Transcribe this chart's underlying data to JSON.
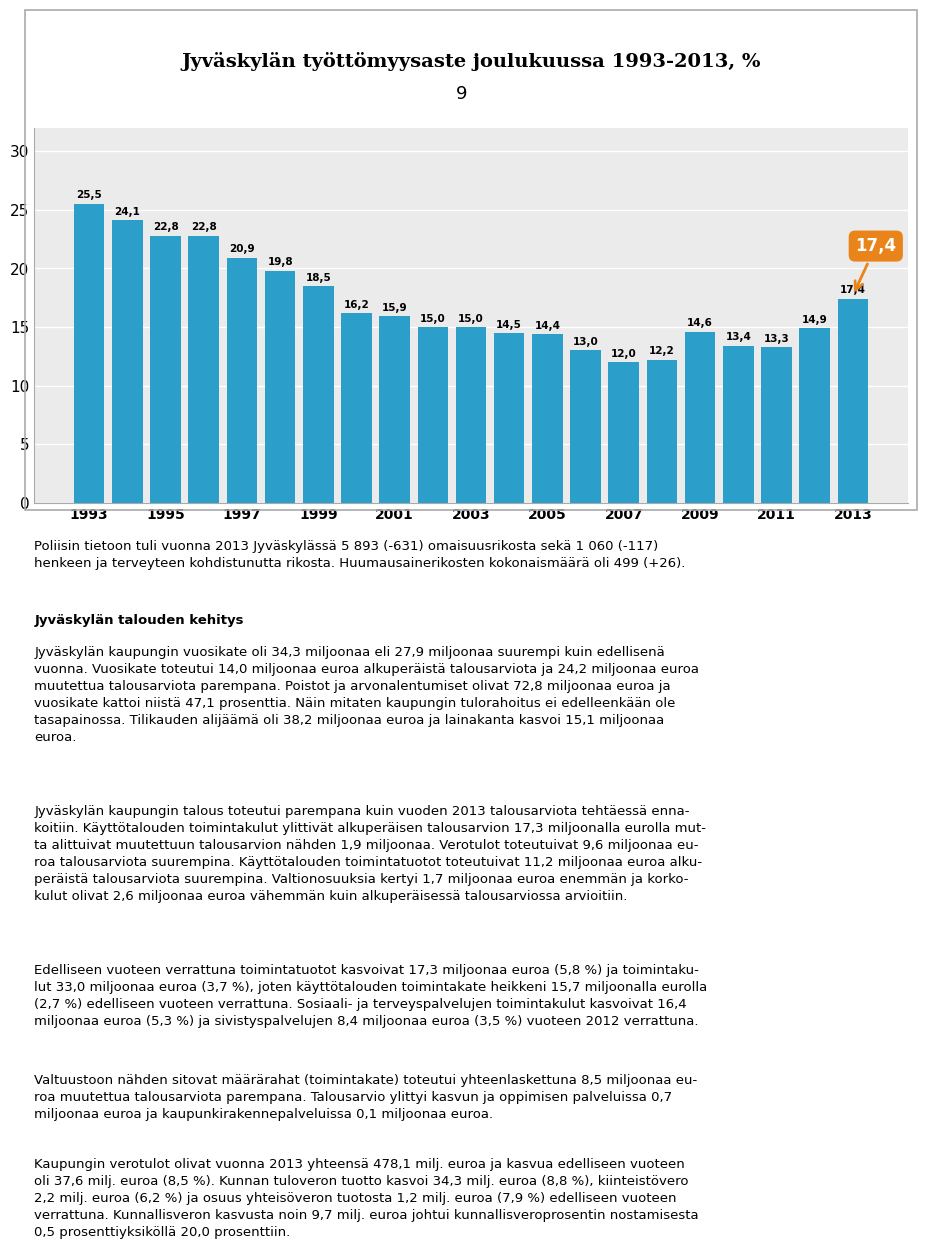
{
  "title": "Jyväskylän työttömyysaste joulukuussa 1993-2013, %",
  "page_number": "9",
  "years": [
    1993,
    1994,
    1995,
    1996,
    1997,
    1998,
    1999,
    2000,
    2001,
    2002,
    2003,
    2004,
    2005,
    2006,
    2007,
    2008,
    2009,
    2010,
    2011,
    2012,
    2013
  ],
  "values": [
    25.5,
    24.1,
    22.8,
    22.8,
    20.9,
    19.8,
    18.5,
    16.2,
    15.9,
    15.0,
    15.0,
    14.5,
    14.4,
    13.0,
    12.0,
    12.2,
    14.6,
    13.4,
    13.3,
    14.9,
    17.4
  ],
  "bar_color": "#2B9EC9",
  "callout_color": "#E8841A",
  "callout_text_color": "#ffffff",
  "yticks": [
    0,
    5,
    10,
    15,
    20,
    25,
    30
  ],
  "xtick_years": [
    1993,
    1995,
    1997,
    1999,
    2001,
    2003,
    2005,
    2007,
    2009,
    2011,
    2013
  ],
  "ylim": [
    0,
    32
  ],
  "para0": "Poliisin tietoon tuli vuonna 2013 Jyväskylässä 5 893 (-631) omaisuusrikosta sekä 1 060 (-117)\nhenkeen ja terveyteen kohdistunutta rikosta. Huumausainerikosten kokonaismäärä oli 499 (+26).",
  "heading1": "Jyväskylän talouden kehitys",
  "para1": "Jyväskylän kaupungin vuosikate oli 34,3 miljoonaa eli 27,9 miljoonaa suurempi kuin edellisenä\nvuonna. Vuosikate toteutui 14,0 miljoonaa euroa alkuperäistä talousarviota ja 24,2 miljoonaa euroa\nmuutettua talousarviota parempana. Poistot ja arvonalentumiset olivat 72,8 miljoonaa euroa ja\nvuosikate kattoi niistä 47,1 prosenttia. Näin mitaten kaupungin tulorahoitus ei edelleenkään ole\ntasapainossa. Tilikauden alijäämä oli 38,2 miljoonaa euroa ja lainakanta kasvoi 15,1 miljoonaa\neuroa.",
  "para2": "Jyväskylän kaupungin talous toteutui parempana kuin vuoden 2013 talousarviota tehtäessä enna-\nkoitiin. Käyttötalouden toimintakulut ylittivät alkuperäisen talousarvion 17,3 miljoonalla eurolla mut-\nta alittuivat muutettuun talousarvion nähden 1,9 miljoonaa. Verotulot toteutuivat 9,6 miljoonaa eu-\nroa talousarviota suurempina. Käyttötalouden toimintatuotot toteutuivat 11,2 miljoonaa euroa alku-\nperäistä talousarviota suurempina. Valtionosuuksia kertyi 1,7 miljoonaa euroa enemmän ja korko-\nkulut olivat 2,6 miljoonaa euroa vähemmän kuin alkuperäisessä talousarviossa arvioitiin.",
  "para3": "Edelliseen vuoteen verrattuna toimintatuotot kasvoivat 17,3 miljoonaa euroa (5,8 %) ja toimintaku-\nlut 33,0 miljoonaa euroa (3,7 %), joten käyttötalouden toimintakate heikkeni 15,7 miljoonalla eurolla\n(2,7 %) edelliseen vuoteen verrattuna. Sosiaali- ja terveyspalvelujen toimintakulut kasvoivat 16,4\nmiljoonaa euroa (5,3 %) ja sivistyspalvelujen 8,4 miljoonaa euroa (3,5 %) vuoteen 2012 verrattuna.",
  "para4": "Valtuustoon nähden sitovat määrärahat (toimintakate) toteutui yhteenlaskettuna 8,5 miljoonaa eu-\nroa muutettua talousarviota parempana. Talousarvio ylittyi kasvun ja oppimisen palveluissa 0,7\nmiljoonaa euroa ja kaupunkirakennepalveluissa 0,1 miljoonaa euroa.",
  "para5": "Kaupungin verotulot olivat vuonna 2013 yhteensä 478,1 milj. euroa ja kasvua edelliseen vuoteen\noli 37,6 milj. euroa (8,5 %). Kunnan tuloveron tuotto kasvoi 34,3 milj. euroa (8,8 %), kiinteistövero\n2,2 milj. euroa (6,2 %) ja osuus yhteisöveron tuotosta 1,2 milj. euroa (7,9 %) edelliseen vuoteen\nverrattuna. Kunnallisveron kasvusta noin 9,7 milj. euroa johtui kunnallisveroprosentin nostamisesta\n0,5 prosenttiyksiköllä 20,0 prosenttiin."
}
